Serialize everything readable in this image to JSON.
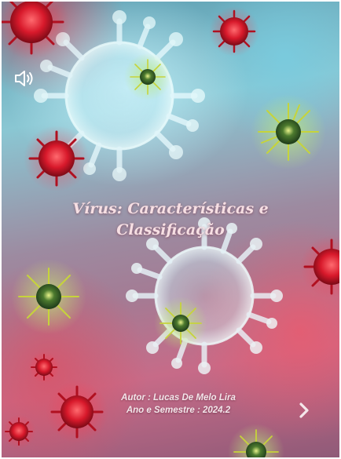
{
  "slide": {
    "title_line1": "Vírus: Características e",
    "title_line2": "Classificação",
    "author": "Autor : Lucas De Melo Lira",
    "term": "Ano e Semestre : 2024.2"
  },
  "controls": {
    "audio_icon": "speaker-icon",
    "next_icon": "chevron-right-icon"
  },
  "colors": {
    "virus_red": "#d8192b",
    "virus_green": "#a8c23a",
    "virus_ghost": "#d7f3f8",
    "title_text": "#f6dfe3"
  }
}
